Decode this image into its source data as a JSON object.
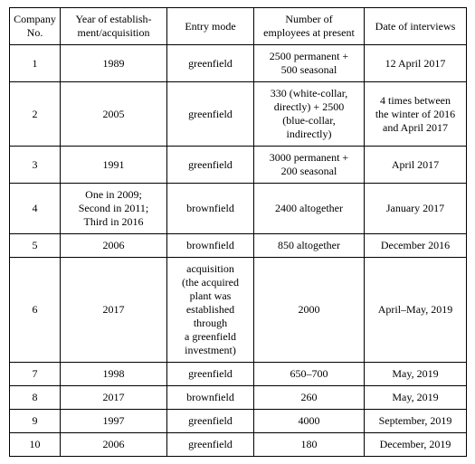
{
  "table": {
    "headers": {
      "company_no": "Company\nNo.",
      "year": "Year of establish-\nment/acquisition",
      "entry_mode": "Entry mode",
      "employees": "Number of\nemployees at present",
      "date": "Date of interviews"
    },
    "rows": [
      {
        "no": "1",
        "year": "1989",
        "mode": "greenfield",
        "emp": "2500 permanent +\n500 seasonal",
        "date": "12 April 2017"
      },
      {
        "no": "2",
        "year": "2005",
        "mode": "greenfield",
        "emp": "330 (white-collar,\ndirectly) + 2500\n(blue-collar,\nindirectly)",
        "date": "4 times between\nthe winter of 2016\nand April 2017"
      },
      {
        "no": "3",
        "year": "1991",
        "mode": "greenfield",
        "emp": "3000 permanent +\n200 seasonal",
        "date": "April 2017"
      },
      {
        "no": "4",
        "year": "One in 2009;\nSecond in 2011;\nThird in 2016",
        "mode": "brownfield",
        "emp": "2400 altogether",
        "date": "January 2017"
      },
      {
        "no": "5",
        "year": "2006",
        "mode": "brownfield",
        "emp": "850 altogether",
        "date": "December 2016"
      },
      {
        "no": "6",
        "year": "2017",
        "mode": "acquisition\n(the acquired\nplant was\nestablished\nthrough\na greenfield\ninvestment)",
        "emp": "2000",
        "date": "April–May, 2019"
      },
      {
        "no": "7",
        "year": "1998",
        "mode": "greenfield",
        "emp": "650–700",
        "date": "May, 2019"
      },
      {
        "no": "8",
        "year": "2017",
        "mode": "brownfield",
        "emp": "260",
        "date": "May, 2019"
      },
      {
        "no": "9",
        "year": "1997",
        "mode": "greenfield",
        "emp": "4000",
        "date": "September, 2019"
      },
      {
        "no": "10",
        "year": "2006",
        "mode": "greenfield",
        "emp": "180",
        "date": "December, 2019"
      }
    ]
  },
  "style": {
    "font_family": "Times New Roman",
    "base_fontsize_pt": 12,
    "text_color": "#000000",
    "border_color": "#000000",
    "background_color": "#ffffff"
  }
}
